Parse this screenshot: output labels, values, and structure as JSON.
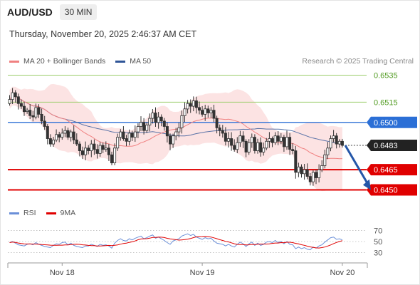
{
  "header": {
    "symbol": "AUD/USD",
    "timeframe": "30 MIN",
    "datetime": "Thursday, November 20, 2025 2:46:37 AM CET"
  },
  "legend": [
    {
      "label": "MA 20 + Bollinger Bands",
      "color": "#f08080"
    },
    {
      "label": "MA 50",
      "color": "#2f5597"
    }
  ],
  "credit": "Research © 2025 Trading Central",
  "rsi_legend": [
    {
      "label": "RSI",
      "color": "#6a8fd8"
    },
    {
      "label": "9MA",
      "color": "#e00000"
    }
  ],
  "chart_data": {
    "type": "candlestick",
    "price_axis": {
      "min": 0.6445,
      "max": 0.654
    },
    "levels": [
      {
        "value": 0.6535,
        "label": "0.6535",
        "style": "thin-green",
        "color": "#9acd6a"
      },
      {
        "value": 0.6515,
        "label": "0.6515",
        "style": "thin-green",
        "color": "#9acd6a"
      },
      {
        "value": 0.65,
        "label": "0.6500",
        "style": "blue",
        "color": "#2b6fd6"
      },
      {
        "value": 0.6483,
        "label": "0.6483",
        "style": "current",
        "color": "#222222"
      },
      {
        "value": 0.6465,
        "label": "0.6465",
        "style": "red",
        "color": "#e00000"
      },
      {
        "value": 0.645,
        "label": "0.6450",
        "style": "red",
        "color": "#e00000"
      }
    ],
    "x_ticks": [
      {
        "label": "Nov 18",
        "index": 18
      },
      {
        "label": "Nov 19",
        "index": 66
      },
      {
        "label": "Nov 20",
        "index": 114
      }
    ],
    "close": [
      0.6517,
      0.6522,
      0.6519,
      0.6514,
      0.6512,
      0.6508,
      0.6509,
      0.6505,
      0.6504,
      0.6511,
      0.6506,
      0.6501,
      0.6497,
      0.6488,
      0.6484,
      0.6487,
      0.6491,
      0.6489,
      0.6492,
      0.6494,
      0.6489,
      0.6493,
      0.6487,
      0.6484,
      0.6479,
      0.6476,
      0.6481,
      0.6479,
      0.6484,
      0.648,
      0.6477,
      0.6483,
      0.648,
      0.6481,
      0.6476,
      0.647,
      0.6481,
      0.6489,
      0.6493,
      0.6488,
      0.6486,
      0.6492,
      0.6489,
      0.6493,
      0.6497,
      0.65,
      0.6494,
      0.6498,
      0.6503,
      0.6507,
      0.65,
      0.6504,
      0.6501,
      0.6497,
      0.649,
      0.6484,
      0.649,
      0.6493,
      0.6496,
      0.6505,
      0.651,
      0.6514,
      0.6512,
      0.6516,
      0.6511,
      0.6509,
      0.6506,
      0.651,
      0.6507,
      0.6509,
      0.6503,
      0.6496,
      0.6494,
      0.6492,
      0.6486,
      0.6488,
      0.6483,
      0.648,
      0.6485,
      0.649,
      0.6486,
      0.6478,
      0.6485,
      0.6489,
      0.6479,
      0.6485,
      0.6478,
      0.6481,
      0.6486,
      0.6488,
      0.6485,
      0.649,
      0.6486,
      0.6489,
      0.6482,
      0.6489,
      0.648,
      0.6479,
      0.6463,
      0.6467,
      0.6462,
      0.6465,
      0.646,
      0.6456,
      0.6463,
      0.6459,
      0.6465,
      0.6468,
      0.6476,
      0.6481,
      0.6488,
      0.649,
      0.6484,
      0.6486,
      0.6483
    ],
    "ma20_end": 0.647,
    "ma50_end": 0.6483,
    "projection": {
      "from_index": 115,
      "from_value": 0.6483,
      "to_index": 124,
      "to_value": 0.6451,
      "color": "#2456a8"
    },
    "rsi": {
      "range": [
        15,
        85
      ],
      "ticks": [
        70,
        50,
        30
      ],
      "values": [
        48,
        50,
        47,
        44,
        43,
        42,
        45,
        46,
        44,
        48,
        45,
        43,
        41,
        40,
        39,
        43,
        46,
        45,
        48,
        49,
        44,
        47,
        43,
        41,
        40,
        39,
        42,
        42,
        45,
        43,
        41,
        45,
        43,
        44,
        42,
        38,
        47,
        52,
        55,
        52,
        51,
        55,
        53,
        56,
        58,
        60,
        55,
        57,
        60,
        62,
        56,
        58,
        55,
        52,
        48,
        45,
        51,
        53,
        55,
        60,
        62,
        64,
        61,
        63,
        58,
        56,
        54,
        57,
        55,
        56,
        51,
        47,
        46,
        45,
        42,
        45,
        42,
        40,
        45,
        49,
        46,
        41,
        46,
        49,
        43,
        47,
        43,
        45,
        49,
        50,
        48,
        52,
        48,
        50,
        46,
        50,
        45,
        44,
        37,
        40,
        37,
        39,
        36,
        35,
        40,
        38,
        42,
        44,
        49,
        53,
        57,
        58,
        54,
        55,
        53
      ]
    }
  }
}
